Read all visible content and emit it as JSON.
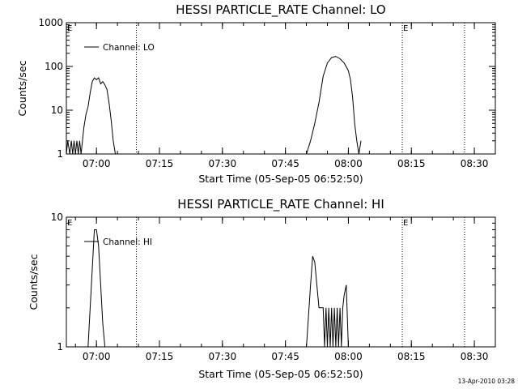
{
  "footer_text": "13-Apr-2010 03:28",
  "chart_data": [
    {
      "type": "line",
      "title": "HESSI PARTICLE_RATE Channel: LO",
      "xlabel": "Start Time (05-Sep-05 06:52:50)",
      "ylabel": "Counts/sec",
      "yscale": "log",
      "xlim": [
        "06:52:50",
        "08:35:00"
      ],
      "ylim": [
        1,
        1000
      ],
      "xticks": [
        "07:00",
        "07:15",
        "07:30",
        "07:45",
        "08:00",
        "08:15",
        "08:30"
      ],
      "yticks": [
        "1",
        "10",
        "100",
        "1000"
      ],
      "legend": {
        "label": "Channel: LO",
        "position": "top-left"
      },
      "markers": [
        {
          "label": "E",
          "x": "06:52:50"
        },
        {
          "label": "",
          "x": "07:09:30"
        },
        {
          "label": "E",
          "x": "08:12:50"
        },
        {
          "label": "",
          "x": "08:27:40"
        }
      ],
      "series": [
        {
          "x": [
            "06:52:50",
            "06:53:10",
            "06:53:40",
            "06:54:00",
            "06:54:20",
            "06:54:40",
            "06:55:00",
            "06:55:20",
            "06:55:40",
            "06:56:00",
            "06:56:20",
            "06:56:40",
            "06:57:00",
            "06:57:30",
            "06:58:00",
            "06:58:30",
            "06:59:00",
            "06:59:30",
            "07:00:00",
            "07:00:30",
            "07:01:00",
            "07:01:30",
            "07:02:00",
            "07:02:30",
            "07:03:00",
            "07:03:30",
            "07:04:00",
            "07:04:30",
            "07:05:00",
            "07:05:20",
            "07:50:00",
            "07:51:00",
            "07:52:00",
            "07:53:00",
            "07:54:00",
            "07:55:00",
            "07:56:00",
            "07:57:00",
            "07:58:00",
            "07:59:00",
            "08:00:00",
            "08:00:30",
            "08:01:00",
            "08:01:30",
            "08:02:00",
            "08:02:30",
            "08:03:00"
          ],
          "y": [
            1,
            2,
            1,
            2,
            1,
            2,
            1,
            2,
            1,
            2,
            1,
            2,
            4,
            8,
            12,
            25,
            45,
            55,
            50,
            55,
            40,
            45,
            38,
            30,
            15,
            6,
            2,
            1,
            1,
            1,
            1,
            2,
            5,
            15,
            60,
            120,
            160,
            170,
            150,
            120,
            80,
            50,
            20,
            5,
            2,
            1,
            2
          ]
        }
      ]
    },
    {
      "type": "line",
      "title": "HESSI PARTICLE_RATE Channel: HI",
      "xlabel": "Start Time (05-Sep-05 06:52:50)",
      "ylabel": "Counts/sec",
      "yscale": "log",
      "xlim": [
        "06:52:50",
        "08:35:00"
      ],
      "ylim": [
        1,
        10
      ],
      "xticks": [
        "07:00",
        "07:15",
        "07:30",
        "07:45",
        "08:00",
        "08:15",
        "08:30"
      ],
      "yticks": [
        "1",
        "10"
      ],
      "legend": {
        "label": "Channel: HI",
        "position": "top-left"
      },
      "markers": [
        {
          "label": "E",
          "x": "06:52:50"
        },
        {
          "label": "",
          "x": "07:09:30"
        },
        {
          "label": "E",
          "x": "08:12:50"
        },
        {
          "label": "",
          "x": "08:27:40"
        }
      ],
      "series": [
        {
          "x": [
            "06:58:00",
            "06:59:00",
            "06:59:30",
            "07:00:00",
            "07:00:30",
            "07:01:00",
            "07:01:30",
            "07:02:00",
            "07:02:30",
            "07:03:00",
            "07:50:00",
            "07:51:00",
            "07:51:30",
            "07:52:00",
            "07:52:30",
            "07:53:00",
            "07:53:30",
            "07:54:00",
            "07:54:20",
            "07:54:40",
            "07:55:00",
            "07:55:20",
            "07:55:40",
            "07:56:00",
            "07:56:20",
            "07:56:40",
            "07:57:00",
            "07:57:20",
            "07:57:40",
            "07:58:00",
            "07:58:20",
            "07:58:40",
            "07:59:00",
            "07:59:30",
            "08:00:00",
            "08:00:30",
            "08:01:00"
          ],
          "y": [
            1,
            4,
            8,
            8,
            6,
            3,
            1.5,
            1,
            1,
            1,
            1,
            3,
            5,
            4.5,
            3,
            2,
            2,
            2,
            1,
            2,
            1,
            2,
            1,
            2,
            1,
            2,
            1,
            2,
            1,
            2,
            1,
            2,
            2.5,
            3,
            1,
            1,
            1
          ]
        }
      ]
    }
  ]
}
